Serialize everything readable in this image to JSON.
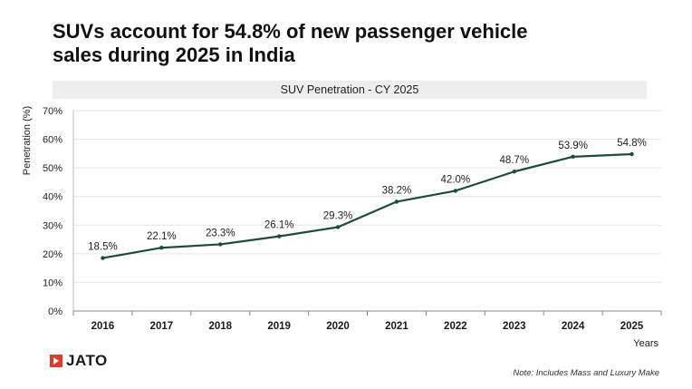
{
  "header": {
    "title_line1": "SUVs account for 54.8% of new passenger vehicle",
    "title_line2": "sales during 2025 in India"
  },
  "chart_data": {
    "type": "line",
    "title": "SUV Penetration - CY 2025",
    "xlabel": "Years",
    "ylabel": "Penetration (%)",
    "ylim": [
      0,
      70
    ],
    "y_ticks": [
      "0%",
      "10%",
      "20%",
      "30%",
      "40%",
      "50%",
      "60%",
      "70%"
    ],
    "categories": [
      "2016",
      "2017",
      "2018",
      "2019",
      "2020",
      "2021",
      "2022",
      "2023",
      "2024",
      "2025"
    ],
    "values": [
      18.5,
      22.1,
      23.3,
      26.1,
      29.3,
      38.2,
      42.0,
      48.7,
      53.9,
      54.8
    ],
    "data_labels": [
      "18.5%",
      "22.1%",
      "23.3%",
      "26.1%",
      "29.3%",
      "38.2%",
      "42.0%",
      "48.7%",
      "53.9%",
      "54.8%"
    ],
    "line_color": "#1f4a3c",
    "grid": true
  },
  "footer": {
    "logo_text": "JATO",
    "note": "Note: Includes Mass and Luxury Make"
  }
}
